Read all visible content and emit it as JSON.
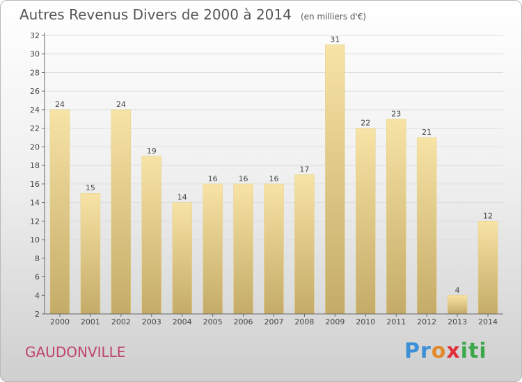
{
  "title": {
    "main": "Autres Revenus Divers de 2000 à 2014",
    "unit": "(en milliers d'€)"
  },
  "commune": "GAUDONVILLE",
  "logo": {
    "part1": "Pr",
    "part2": "o",
    "part3": "x",
    "part4": "iti"
  },
  "colors": {
    "bar_light": "#f7e3a5",
    "bar_dark": "#c4ab68",
    "axis": "#666666",
    "grid": "#dddddd",
    "text": "#444444"
  },
  "chart_data": {
    "type": "bar",
    "title": "Autres Revenus Divers de 2000 à 2014",
    "categories": [
      "2000",
      "2001",
      "2002",
      "2003",
      "2004",
      "2005",
      "2006",
      "2007",
      "2008",
      "2009",
      "2010",
      "2011",
      "2012",
      "2013",
      "2014"
    ],
    "values": [
      24,
      15,
      24,
      19,
      14,
      16,
      16,
      16,
      17,
      31,
      22,
      23,
      21,
      4,
      12
    ],
    "ylim": [
      2,
      32
    ],
    "yticks": [
      2,
      4,
      6,
      8,
      10,
      12,
      14,
      16,
      18,
      20,
      22,
      24,
      26,
      28,
      30,
      32
    ],
    "grid": true,
    "data_labels": true
  }
}
